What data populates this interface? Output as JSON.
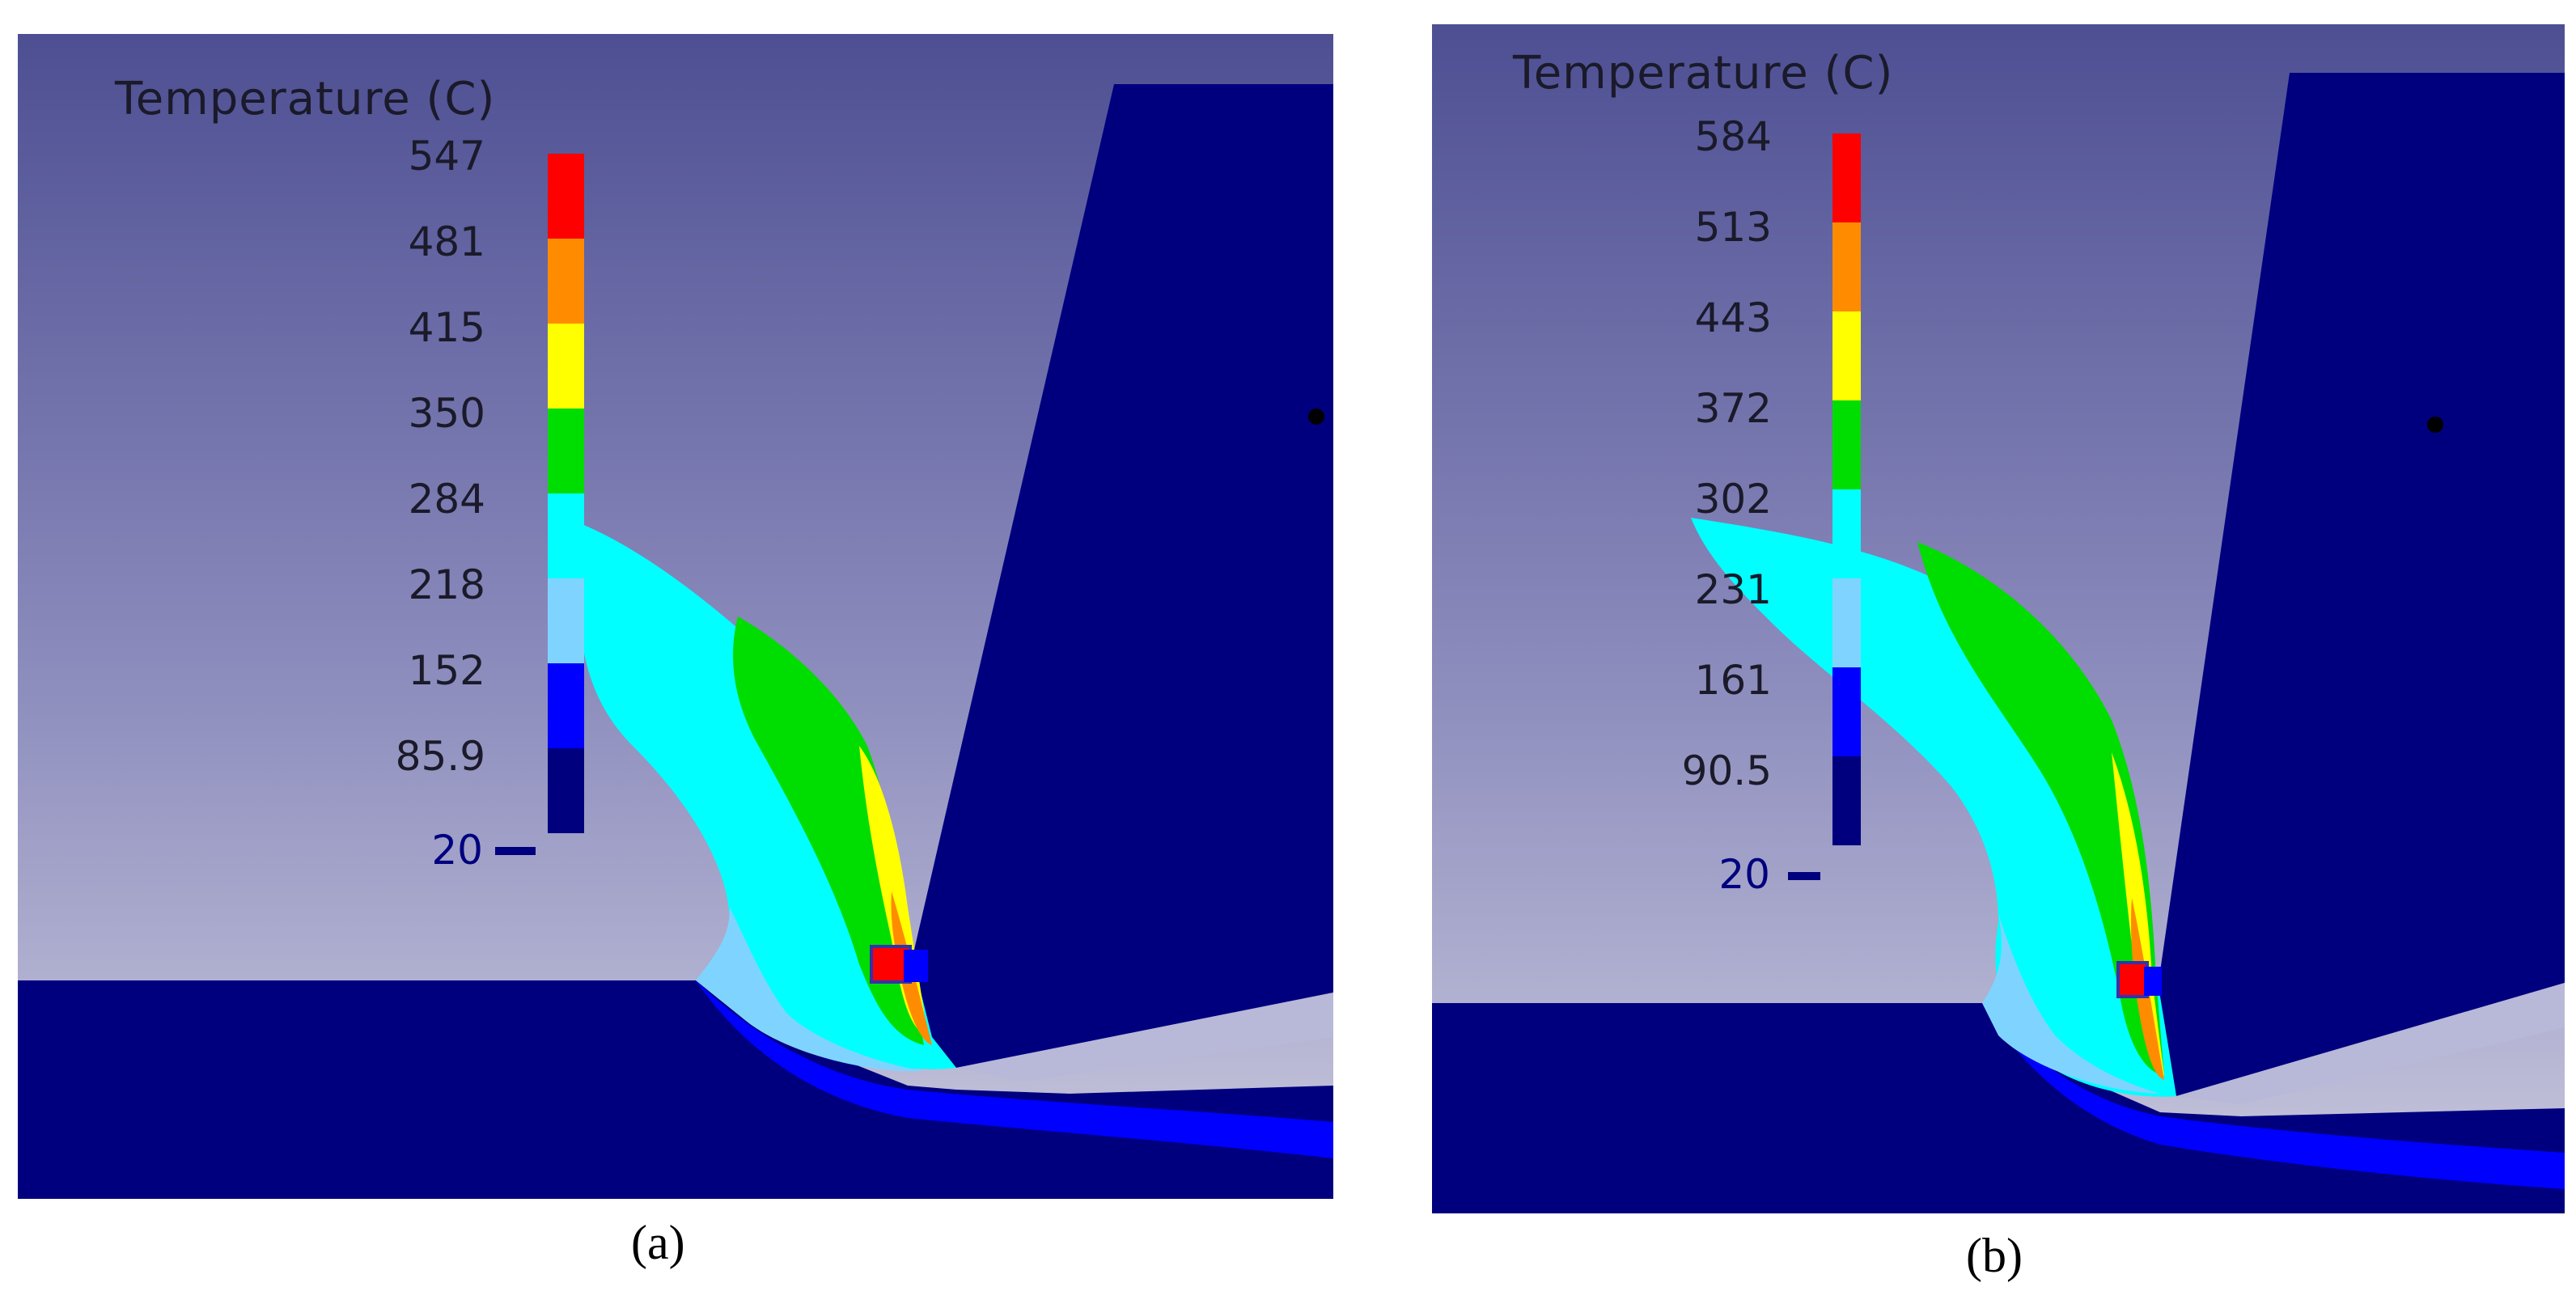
{
  "panels": [
    {
      "id": "a",
      "caption": "(a)",
      "legend_title": "Temperature (C)",
      "ticks": [
        "547",
        "481",
        "415",
        "350",
        "284",
        "218",
        "152",
        "85.9",
        "20"
      ]
    },
    {
      "id": "b",
      "caption": "(b)",
      "legend_title": "Temperature (C)",
      "ticks": [
        "584",
        "513",
        "443",
        "372",
        "302",
        "231",
        "161",
        "90.5",
        "20"
      ]
    }
  ],
  "colors": {
    "legend_bands_top_to_bottom": [
      "#ff0000",
      "#ff8c00",
      "#ffff00",
      "#00dd00",
      "#00ffff",
      "#7fd4ff",
      "#0000ff",
      "#00007f"
    ],
    "tool_and_workpiece": "#00007f",
    "background_top": "#4e4f93",
    "background_bottom": "#c7c7dd"
  }
}
